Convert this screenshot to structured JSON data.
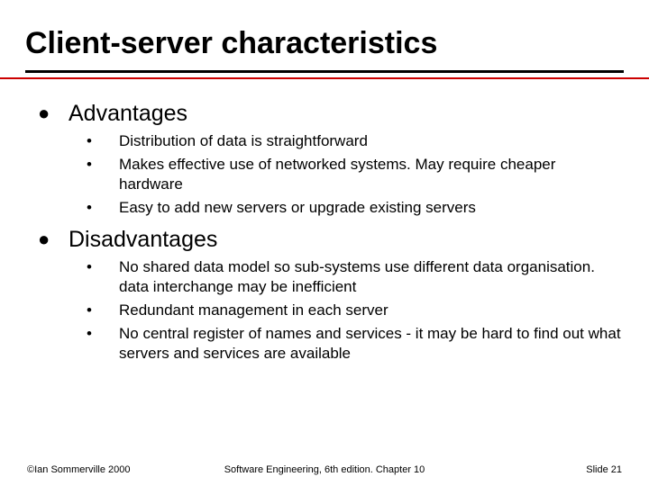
{
  "title": "Client-server characteristics",
  "colors": {
    "rule_black": "#000000",
    "rule_red": "#cc0000",
    "text": "#000000",
    "background": "#ffffff"
  },
  "typography": {
    "title_fontsize": 34,
    "section_fontsize": 25,
    "item_fontsize": 17,
    "footer_fontsize": 11,
    "font_family": "Arial"
  },
  "sections": [
    {
      "heading": "Advantages",
      "items": [
        "Distribution of data is straightforward",
        "Makes effective use of networked systems. May require cheaper hardware",
        "Easy to add new servers or upgrade existing servers"
      ]
    },
    {
      "heading": "Disadvantages",
      "items": [
        "No shared data model so sub-systems use different data organisation. data interchange may be inefficient",
        "Redundant management in each server",
        "No central register of names and services - it may be hard to find out what servers and services are available"
      ]
    }
  ],
  "footer": {
    "left": "©Ian Sommerville 2000",
    "center": "Software Engineering, 6th edition. Chapter 10",
    "right": "Slide 21"
  },
  "bullets": {
    "section": "●",
    "item": "•"
  }
}
